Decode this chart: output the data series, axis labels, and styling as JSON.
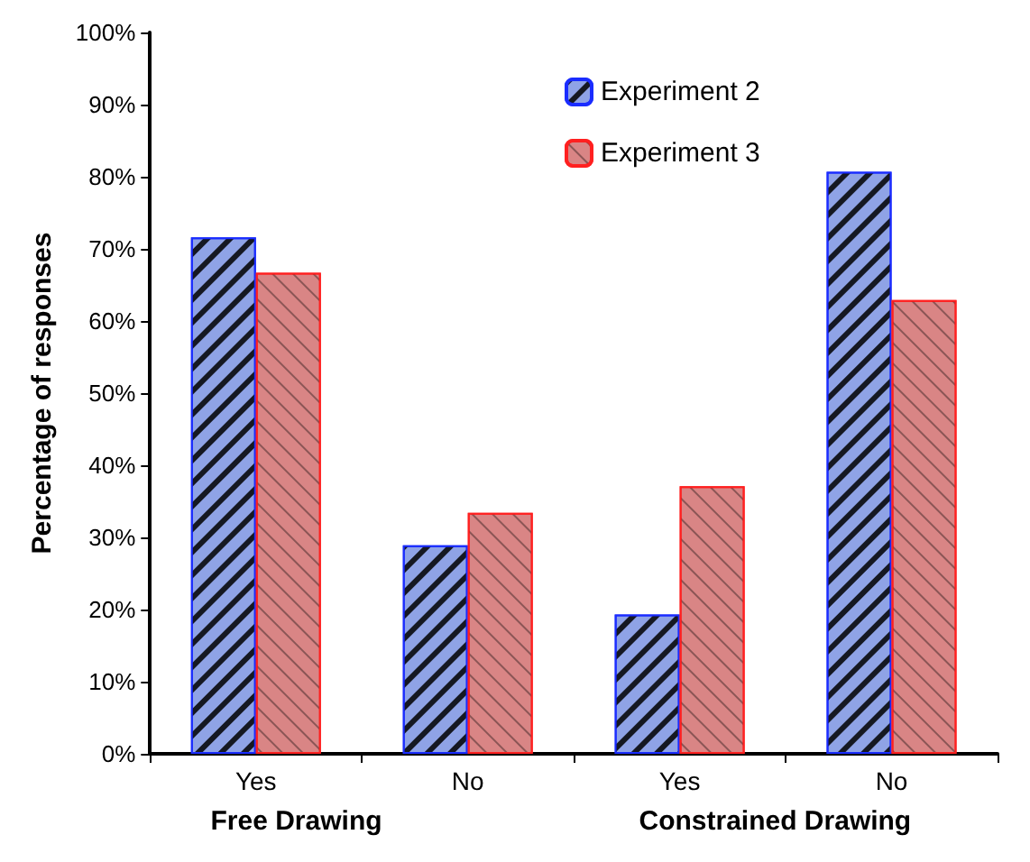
{
  "chart_data": {
    "type": "bar",
    "ylabel": "Percentage of responses",
    "categories": [
      "Yes",
      "No",
      "Yes",
      "No"
    ],
    "annotations": [
      "Free Drawing",
      "Constrained Drawing"
    ],
    "series": [
      {
        "name": "Experiment 2",
        "color": "#8fa3e6",
        "values": [
          71.6,
          28.9,
          19.3,
          80.7
        ]
      },
      {
        "name": "Experiment 3",
        "color": "#d98585",
        "values": [
          66.7,
          33.4,
          37.1,
          62.9
        ]
      }
    ],
    "ylim": [
      0,
      100
    ],
    "yticks": [
      {
        "value": 0,
        "label": "0%"
      },
      {
        "value": 10,
        "label": "10%"
      },
      {
        "value": 20,
        "label": "20%"
      },
      {
        "value": 30,
        "label": "30%"
      },
      {
        "value": 40,
        "label": "40%"
      },
      {
        "value": 50,
        "label": "50%"
      },
      {
        "value": 60,
        "label": "60%"
      },
      {
        "value": 70,
        "label": "70%"
      },
      {
        "value": 80,
        "label": "80%"
      },
      {
        "value": 90,
        "label": "90%"
      },
      {
        "value": 100,
        "label": "100%"
      }
    ],
    "grid": false,
    "legend": "top"
  }
}
